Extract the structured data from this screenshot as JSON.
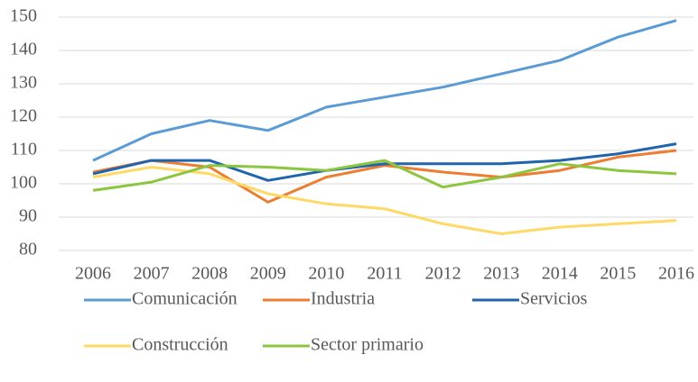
{
  "chart_data": {
    "type": "line",
    "categories": [
      "2006",
      "2007",
      "2008",
      "2009",
      "2010",
      "2011",
      "2012",
      "2013",
      "2014",
      "2015",
      "2016"
    ],
    "series": [
      {
        "name": "Comunicación",
        "color": "#5b9bd5",
        "values": [
          107,
          115,
          119,
          116,
          123,
          126,
          129,
          133,
          137,
          144,
          149
        ]
      },
      {
        "name": "Industria",
        "color": "#ed7d31",
        "values": [
          103.5,
          107,
          105,
          94.5,
          102,
          105.5,
          103.5,
          102,
          104,
          108,
          110
        ]
      },
      {
        "name": "Servicios",
        "color": "#1f64ad",
        "values": [
          103,
          107,
          107,
          101,
          104,
          106,
          106,
          106,
          107,
          109,
          112
        ]
      },
      {
        "name": "Construcción",
        "color": "#ffd966",
        "values": [
          102,
          105,
          103,
          97,
          94,
          92.5,
          88,
          85,
          87,
          88,
          89
        ]
      },
      {
        "name": "Sector primario",
        "color": "#8cc63f",
        "values": [
          98,
          100.5,
          105.5,
          105,
          104,
          107,
          99,
          102,
          106,
          104,
          103
        ]
      }
    ],
    "ylim": [
      80,
      150
    ],
    "yticks": [
      80,
      90,
      100,
      110,
      120,
      130,
      140,
      150
    ],
    "grid": true,
    "legend": "bottom"
  }
}
